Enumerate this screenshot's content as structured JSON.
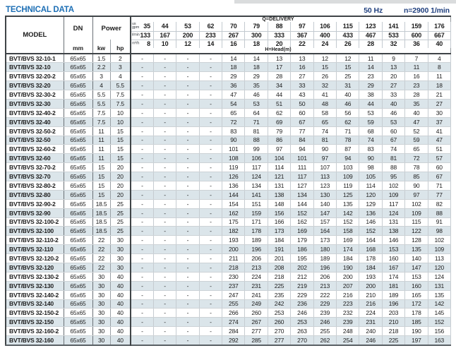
{
  "header": {
    "title": "TECHNICAL DATA",
    "frequency": "50 Hz",
    "speed": "n=2900 1/min"
  },
  "colors": {
    "title_blue": "#1d6fb5",
    "spec_navy": "#1f3f7e",
    "row_stripe": "#dbe5ea",
    "grid_dark": "#3f4447",
    "grid_light": "#c3cad0"
  },
  "table": {
    "headers": {
      "model": "MODEL",
      "dn": "DN",
      "dn_unit": "mm",
      "power": "Power",
      "power_kw": "kw",
      "power_hp": "hp",
      "delivery_label": "Q=DELIVERY",
      "head_label": "H=Head(m)"
    },
    "units": {
      "us_gpm": "us\ngpm",
      "l_min": "l/min",
      "m3_h": "m³/h"
    },
    "flow": {
      "us_gpm": [
        35,
        44,
        53,
        62,
        70,
        79,
        88,
        97,
        106,
        115,
        123,
        141,
        159,
        176
      ],
      "l_min": [
        133,
        167,
        200,
        233,
        267,
        300,
        333,
        367,
        400,
        433,
        467,
        533,
        600,
        667
      ],
      "m3_h": [
        8,
        10,
        12,
        14,
        16,
        18,
        20,
        22,
        24,
        26,
        28,
        32,
        36,
        40
      ]
    },
    "rows": [
      {
        "model": "BVT/BVS 32-10-1",
        "dn": "65x65",
        "kw": "1.5",
        "hp": "2",
        "head": [
          "-",
          "-",
          "-",
          "-",
          "14",
          "14",
          "13",
          "13",
          "12",
          "12",
          "11",
          "9",
          "7",
          "4"
        ]
      },
      {
        "model": "BVT/BVS 32-10",
        "dn": "65x65",
        "kw": "2.2",
        "hp": "3",
        "head": [
          "-",
          "-",
          "-",
          "-",
          "18",
          "18",
          "17",
          "16",
          "15",
          "15",
          "14",
          "13",
          "11",
          "8"
        ]
      },
      {
        "model": "BVT/BVS 32-20-2",
        "dn": "65x65",
        "kw": "3",
        "hp": "4",
        "head": [
          "-",
          "-",
          "-",
          "-",
          "29",
          "29",
          "28",
          "27",
          "26",
          "25",
          "23",
          "20",
          "16",
          "11"
        ]
      },
      {
        "model": "BVT/BVS 32-20",
        "dn": "65x65",
        "kw": "4",
        "hp": "5.5",
        "head": [
          "-",
          "-",
          "-",
          "-",
          "36",
          "35",
          "34",
          "33",
          "32",
          "31",
          "29",
          "27",
          "23",
          "18"
        ]
      },
      {
        "model": "BVT/BVS 32-30-2",
        "dn": "65x65",
        "kw": "5.5",
        "hp": "7.5",
        "head": [
          "-",
          "-",
          "-",
          "-",
          "47",
          "46",
          "44",
          "43",
          "41",
          "40",
          "38",
          "33",
          "28",
          "21"
        ]
      },
      {
        "model": "BVT/BVS 32-30",
        "dn": "65x65",
        "kw": "5.5",
        "hp": "7.5",
        "head": [
          "-",
          "-",
          "-",
          "-",
          "54",
          "53",
          "51",
          "50",
          "48",
          "46",
          "44",
          "40",
          "35",
          "27"
        ]
      },
      {
        "model": "BVT/BVS 32-40-2",
        "dn": "65x65",
        "kw": "7.5",
        "hp": "10",
        "head": [
          "-",
          "-",
          "-",
          "-",
          "65",
          "64",
          "62",
          "60",
          "58",
          "56",
          "53",
          "46",
          "40",
          "30"
        ]
      },
      {
        "model": "BVT/BVS 32-40",
        "dn": "65x65",
        "kw": "7.5",
        "hp": "10",
        "head": [
          "-",
          "-",
          "-",
          "-",
          "72",
          "71",
          "69",
          "67",
          "65",
          "62",
          "59",
          "53",
          "47",
          "37"
        ]
      },
      {
        "model": "BVT/BVS 32-50-2",
        "dn": "65x65",
        "kw": "11",
        "hp": "15",
        "head": [
          "-",
          "-",
          "-",
          "-",
          "83",
          "81",
          "79",
          "77",
          "74",
          "71",
          "68",
          "60",
          "52",
          "41"
        ]
      },
      {
        "model": "BVT/BVS 32-50",
        "dn": "65x65",
        "kw": "11",
        "hp": "15",
        "head": [
          "-",
          "-",
          "-",
          "-",
          "90",
          "88",
          "86",
          "84",
          "81",
          "78",
          "74",
          "67",
          "59",
          "47"
        ]
      },
      {
        "model": "BVT/BVS 32-60-2",
        "dn": "65x65",
        "kw": "11",
        "hp": "15",
        "head": [
          "-",
          "-",
          "-",
          "-",
          "101",
          "99",
          "97",
          "94",
          "90",
          "87",
          "83",
          "74",
          "65",
          "51"
        ]
      },
      {
        "model": "BVT/BVS 32-60",
        "dn": "65x65",
        "kw": "11",
        "hp": "15",
        "head": [
          "-",
          "-",
          "-",
          "-",
          "108",
          "106",
          "104",
          "101",
          "97",
          "94",
          "90",
          "81",
          "72",
          "57"
        ]
      },
      {
        "model": "BVT/BVS 32-70-2",
        "dn": "65x65",
        "kw": "15",
        "hp": "20",
        "head": [
          "-",
          "-",
          "-",
          "-",
          "119",
          "117",
          "114",
          "111",
          "107",
          "103",
          "98",
          "88",
          "78",
          "60"
        ]
      },
      {
        "model": "BVT/BVS 32-70",
        "dn": "65x65",
        "kw": "15",
        "hp": "20",
        "head": [
          "-",
          "-",
          "-",
          "-",
          "126",
          "124",
          "121",
          "117",
          "113",
          "109",
          "105",
          "95",
          "85",
          "67"
        ]
      },
      {
        "model": "BVT/BVS 32-80-2",
        "dn": "65x65",
        "kw": "15",
        "hp": "20",
        "head": [
          "-",
          "-",
          "-",
          "-",
          "136",
          "134",
          "131",
          "127",
          "123",
          "119",
          "114",
          "102",
          "90",
          "71"
        ]
      },
      {
        "model": "BVT/BVS 32-80",
        "dn": "65x65",
        "kw": "15",
        "hp": "20",
        "head": [
          "-",
          "-",
          "-",
          "-",
          "144",
          "141",
          "138",
          "134",
          "130",
          "125",
          "120",
          "109",
          "97",
          "77"
        ]
      },
      {
        "model": "BVT/BVS 32-90-2",
        "dn": "65x65",
        "kw": "18.5",
        "hp": "25",
        "head": [
          "-",
          "-",
          "-",
          "-",
          "154",
          "151",
          "148",
          "144",
          "140",
          "135",
          "129",
          "117",
          "102",
          "82"
        ]
      },
      {
        "model": "BVT/BVS 32-90",
        "dn": "65x65",
        "kw": "18.5",
        "hp": "25",
        "head": [
          "-",
          "-",
          "-",
          "-",
          "162",
          "159",
          "156",
          "152",
          "147",
          "142",
          "136",
          "124",
          "109",
          "88"
        ]
      },
      {
        "model": "BVT/BVS 32-100-2",
        "dn": "65x65",
        "kw": "18.5",
        "hp": "25",
        "head": [
          "-",
          "-",
          "-",
          "-",
          "175",
          "171",
          "166",
          "162",
          "157",
          "152",
          "146",
          "131",
          "115",
          "91"
        ]
      },
      {
        "model": "BVT/BVS 32-100",
        "dn": "65x65",
        "kw": "18.5",
        "hp": "25",
        "head": [
          "-",
          "-",
          "-",
          "-",
          "182",
          "178",
          "173",
          "169",
          "164",
          "158",
          "152",
          "138",
          "122",
          "98"
        ]
      },
      {
        "model": "BVT/BVS 32-110-2",
        "dn": "65x65",
        "kw": "22",
        "hp": "30",
        "head": [
          "-",
          "-",
          "-",
          "-",
          "193",
          "189",
          "184",
          "179",
          "173",
          "169",
          "164",
          "146",
          "128",
          "102"
        ]
      },
      {
        "model": "BVT/BVS 32-110",
        "dn": "65x65",
        "kw": "22",
        "hp": "30",
        "head": [
          "-",
          "-",
          "-",
          "-",
          "200",
          "196",
          "191",
          "186",
          "180",
          "174",
          "168",
          "153",
          "135",
          "109"
        ]
      },
      {
        "model": "BVT/BVS 32-120-2",
        "dn": "65x65",
        "kw": "22",
        "hp": "30",
        "head": [
          "-",
          "-",
          "-",
          "-",
          "211",
          "206",
          "201",
          "195",
          "189",
          "184",
          "178",
          "160",
          "140",
          "113"
        ]
      },
      {
        "model": "BVT/BVS 32-120",
        "dn": "65x65",
        "kw": "22",
        "hp": "30",
        "head": [
          "-",
          "-",
          "-",
          "-",
          "218",
          "213",
          "208",
          "202",
          "196",
          "190",
          "184",
          "167",
          "147",
          "120"
        ]
      },
      {
        "model": "BVT/BVS 32-130-2",
        "dn": "65x65",
        "kw": "30",
        "hp": "40",
        "head": [
          "-",
          "-",
          "-",
          "-",
          "230",
          "224",
          "218",
          "212",
          "206",
          "200",
          "193",
          "174",
          "153",
          "124"
        ]
      },
      {
        "model": "BVT/BVS 32-130",
        "dn": "65x65",
        "kw": "30",
        "hp": "40",
        "head": [
          "-",
          "-",
          "-",
          "-",
          "237",
          "231",
          "225",
          "219",
          "213",
          "207",
          "200",
          "181",
          "160",
          "131"
        ]
      },
      {
        "model": "BVT/BVS 32-140-2",
        "dn": "65x65",
        "kw": "30",
        "hp": "40",
        "head": [
          "-",
          "-",
          "-",
          "-",
          "247",
          "241",
          "235",
          "229",
          "222",
          "216",
          "210",
          "189",
          "165",
          "135"
        ]
      },
      {
        "model": "BVT/BVS 32-140",
        "dn": "65x65",
        "kw": "30",
        "hp": "40",
        "head": [
          "-",
          "-",
          "-",
          "-",
          "255",
          "249",
          "242",
          "236",
          "229",
          "223",
          "216",
          "196",
          "172",
          "142"
        ]
      },
      {
        "model": "BVT/BVS 32-150-2",
        "dn": "65x65",
        "kw": "30",
        "hp": "40",
        "head": [
          "-",
          "-",
          "-",
          "-",
          "266",
          "260",
          "253",
          "246",
          "239",
          "232",
          "224",
          "203",
          "178",
          "145"
        ]
      },
      {
        "model": "BVT/BVS 32-150",
        "dn": "65x65",
        "kw": "30",
        "hp": "40",
        "head": [
          "-",
          "-",
          "-",
          "-",
          "274",
          "267",
          "260",
          "253",
          "246",
          "239",
          "231",
          "210",
          "185",
          "152"
        ]
      },
      {
        "model": "BVT/BVS 32-160-2",
        "dn": "65x65",
        "kw": "30",
        "hp": "40",
        "head": [
          "-",
          "-",
          "-",
          "-",
          "284",
          "277",
          "270",
          "263",
          "255",
          "248",
          "240",
          "218",
          "190",
          "156"
        ]
      },
      {
        "model": "BVT/BVS 32-160",
        "dn": "65x65",
        "kw": "30",
        "hp": "40",
        "head": [
          "-",
          "-",
          "-",
          "-",
          "292",
          "285",
          "277",
          "270",
          "262",
          "254",
          "246",
          "225",
          "197",
          "163"
        ]
      }
    ]
  }
}
